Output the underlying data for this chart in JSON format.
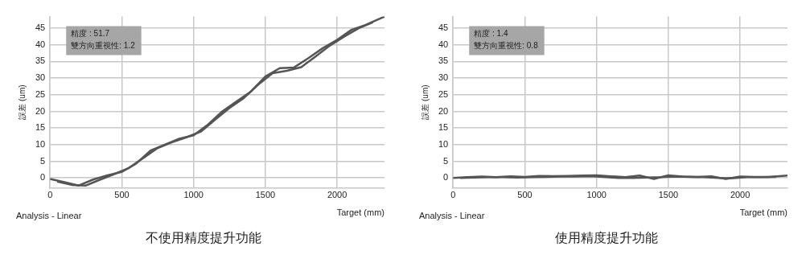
{
  "chart_data": [
    {
      "type": "line",
      "title": "不使用精度提升功能",
      "xlabel": "Target (mm)",
      "ylabel": "誤差 (um)",
      "annotations": [
        "精度 : 51.7",
        "雙方向重視性: 1.2",
        "Analysis - Linear"
      ],
      "x": [
        0,
        100,
        200,
        300,
        400,
        500,
        600,
        700,
        800,
        900,
        1000,
        1100,
        1200,
        1300,
        1400,
        1500,
        1600,
        1700,
        1800,
        1900,
        2000,
        2100,
        2200,
        2330
      ],
      "series": [
        {
          "color": "#555555",
          "values": [
            -0.3,
            -1.3,
            -2.3,
            -0.5,
            0.8,
            1.8,
            4.3,
            8.2,
            10,
            11.8,
            12.8,
            16,
            20,
            23,
            26,
            30.5,
            33,
            33.2,
            36,
            39,
            41.5,
            44.5,
            46,
            48.5
          ]
        },
        {
          "color": "#555555",
          "x": [
            50,
            150,
            250,
            350,
            450,
            550,
            650,
            750,
            850,
            950,
            1050,
            1150,
            1250,
            1350,
            1450,
            1550,
            1650,
            1750,
            1850,
            1950,
            2050,
            2150,
            2250
          ],
          "values": [
            -1.1,
            -2.1,
            -2.3,
            -0.5,
            1.2,
            3,
            6,
            9,
            10.7,
            12.2,
            13.9,
            17.5,
            21,
            24,
            28,
            31.5,
            32.2,
            33.3,
            36.5,
            39.8,
            42.5,
            45,
            46.8
          ]
        }
      ],
      "xlim": [
        0,
        2330
      ],
      "xticks": [
        0,
        500,
        1000,
        1500,
        2000
      ],
      "ylim": [
        -3,
        48.5
      ],
      "yticks": [
        0,
        5,
        10,
        15,
        20,
        25,
        30,
        35,
        40,
        45
      ],
      "grid": true,
      "legend": false,
      "marker": "none",
      "line_style": "solid"
    },
    {
      "type": "line",
      "title": "使用精度提升功能",
      "xlabel": "Target (mm)",
      "ylabel": "誤差 (um)",
      "annotations": [
        "精度 : 1.4",
        "雙方向重視性: 0.8",
        "Analysis - Linear"
      ],
      "x": [
        0,
        100,
        200,
        300,
        400,
        500,
        600,
        700,
        800,
        900,
        1000,
        1100,
        1200,
        1300,
        1400,
        1500,
        1600,
        1700,
        1800,
        1900,
        2000,
        2100,
        2200,
        2330
      ],
      "series": [
        {
          "color": "#555555",
          "values": [
            0,
            0.2,
            0.4,
            0.2,
            0.5,
            0.3,
            0.6,
            0.5,
            0.6,
            0.7,
            0.8,
            0.5,
            0.2,
            0.7,
            -0.3,
            0.8,
            0.4,
            0.3,
            0.5,
            -0.3,
            0.4,
            0.3,
            0.3,
            0.7
          ]
        },
        {
          "color": "#555555",
          "x": [
            50,
            150,
            250,
            350,
            450,
            550,
            650,
            750,
            850,
            950,
            1050,
            1150,
            1250,
            1350,
            1450,
            1550,
            1650,
            1750,
            1850,
            1950,
            2050,
            2150,
            2250
          ],
          "values": [
            0,
            0.1,
            0.2,
            0.2,
            0.1,
            0.2,
            0.3,
            0.4,
            0.4,
            0.5,
            0.3,
            0,
            0,
            0.1,
            0.2,
            0.4,
            0.3,
            0.2,
            0,
            -0.1,
            0.2,
            0.2,
            0.3
          ]
        }
      ],
      "xlim": [
        0,
        2330
      ],
      "xticks": [
        0,
        500,
        1000,
        1500,
        2000
      ],
      "ylim": [
        -3,
        48.5
      ],
      "yticks": [
        0,
        5,
        10,
        15,
        20,
        25,
        30,
        35,
        40,
        45
      ],
      "grid": true,
      "legend": false,
      "marker": "none",
      "line_style": "solid"
    }
  ]
}
